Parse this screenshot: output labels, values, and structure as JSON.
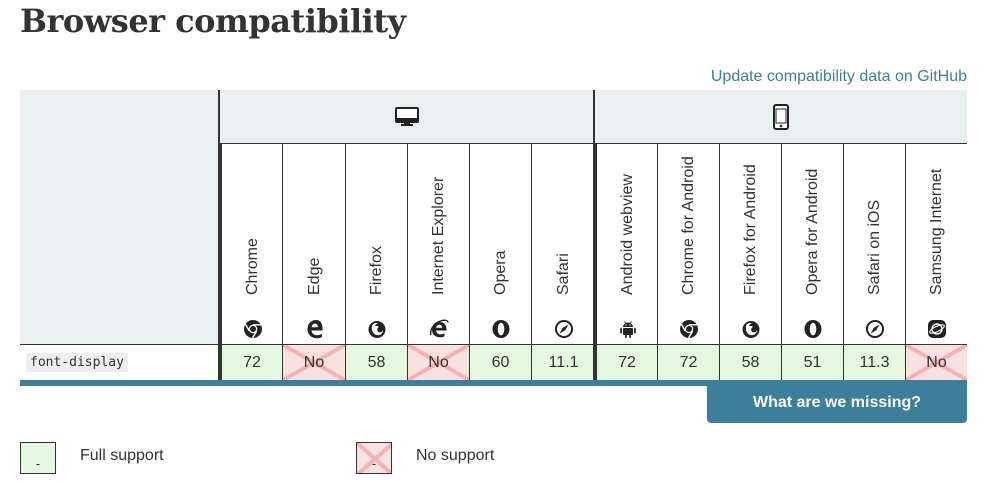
{
  "page": {
    "title": "Browser compatibility",
    "github_link": "Update compatibility data on GitHub"
  },
  "platforms": [
    {
      "name": "desktop",
      "icon": "desktop-icon"
    },
    {
      "name": "mobile",
      "icon": "mobile-icon"
    }
  ],
  "browsers": [
    {
      "name": "Chrome",
      "icon": "chrome-icon",
      "support": "72",
      "status": "yes"
    },
    {
      "name": "Edge",
      "icon": "edge-icon",
      "support": "No",
      "status": "no"
    },
    {
      "name": "Firefox",
      "icon": "firefox-icon",
      "support": "58",
      "status": "yes"
    },
    {
      "name": "Internet Explorer",
      "icon": "ie-icon",
      "support": "No",
      "status": "no"
    },
    {
      "name": "Opera",
      "icon": "opera-icon",
      "support": "60",
      "status": "yes"
    },
    {
      "name": "Safari",
      "icon": "safari-icon",
      "support": "11.1",
      "status": "yes"
    },
    {
      "name": "Android webview",
      "icon": "android-icon",
      "support": "72",
      "status": "yes"
    },
    {
      "name": "Chrome for Android",
      "icon": "chrome-icon",
      "support": "72",
      "status": "yes"
    },
    {
      "name": "Firefox for Android",
      "icon": "firefox-icon",
      "support": "58",
      "status": "yes"
    },
    {
      "name": "Opera for Android",
      "icon": "opera-icon",
      "support": "51",
      "status": "yes"
    },
    {
      "name": "Safari on iOS",
      "icon": "safari-icon",
      "support": "11.3",
      "status": "yes"
    },
    {
      "name": "Samsung Internet",
      "icon": "samsung-icon",
      "support": "No",
      "status": "no"
    }
  ],
  "feature": "font-display",
  "missing_button": "What are we missing?",
  "legend": [
    {
      "label": "Full support",
      "symbol": "-",
      "status": "yes"
    },
    {
      "label": "No support",
      "symbol": "-",
      "status": "no"
    }
  ],
  "colors": {
    "full_support": "#e4f8e1",
    "no_support": "#f8e1e1",
    "accent": "#3d7e9a",
    "header_bg": "#eaeff2"
  }
}
